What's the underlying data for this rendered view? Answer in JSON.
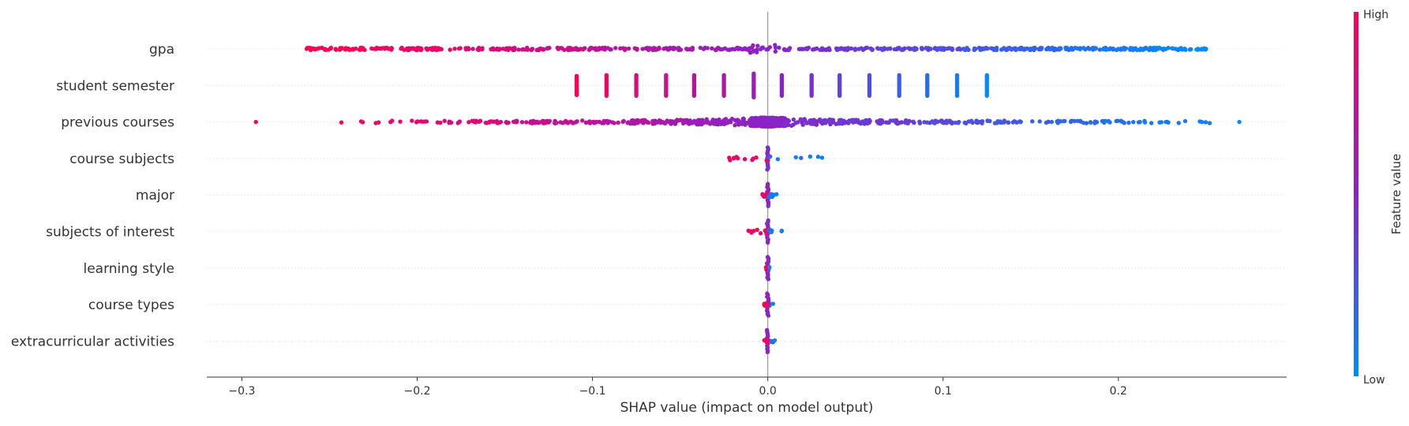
{
  "chart_data": {
    "type": "scatter",
    "subtype": "shap-beeswarm",
    "title": "",
    "xlabel": "SHAP value (impact on model output)",
    "ylabel": "",
    "xlim": [
      -0.32,
      0.296
    ],
    "x_ticks": [
      -0.3,
      -0.2,
      -0.1,
      0.0,
      0.1,
      0.2
    ],
    "x_tick_labels": [
      "−0.3",
      "−0.2",
      "−0.1",
      "0.0",
      "0.1",
      "0.2"
    ],
    "grid": false,
    "features": [
      {
        "name": "gpa",
        "min": -0.263,
        "max": 0.25,
        "style": "spread",
        "density": 0.9,
        "core": 0.0,
        "jitter": 1.0
      },
      {
        "name": "student semester",
        "levels": [
          -0.109,
          -0.092,
          -0.075,
          -0.058,
          -0.042,
          -0.025,
          -0.008,
          0.008,
          0.025,
          0.041,
          0.058,
          0.075,
          0.091,
          0.108,
          0.125
        ],
        "style": "discrete"
      },
      {
        "name": "previous courses",
        "min": -0.292,
        "max": 0.269,
        "style": "dense-center",
        "density": 1.0,
        "core": 0.03,
        "jitter": 1.0
      },
      {
        "name": "course subjects",
        "min": -0.022,
        "max": 0.031,
        "style": "narrow",
        "core": 0.018
      },
      {
        "name": "major",
        "min": -0.003,
        "max": 0.005,
        "style": "narrow",
        "core": 0.004
      },
      {
        "name": "subjects of interest",
        "min": -0.011,
        "max": 0.008,
        "style": "narrow",
        "core": 0.005
      },
      {
        "name": "learning style",
        "min": -0.001,
        "max": 0.001,
        "style": "narrow",
        "core": 0.001
      },
      {
        "name": "course types",
        "min": -0.002,
        "max": 0.003,
        "style": "narrow",
        "core": 0.002
      },
      {
        "name": "extracurricular activities",
        "min": -0.002,
        "max": 0.004,
        "style": "narrow",
        "core": 0.002
      }
    ],
    "colorbar": {
      "title": "Feature value",
      "high_label": "High",
      "low_label": "Low",
      "high_color": "#ff0052",
      "mid_color": "#8a22c8",
      "low_color": "#008bfb"
    },
    "zero_line_color": "#999999",
    "legend_position": "right"
  }
}
